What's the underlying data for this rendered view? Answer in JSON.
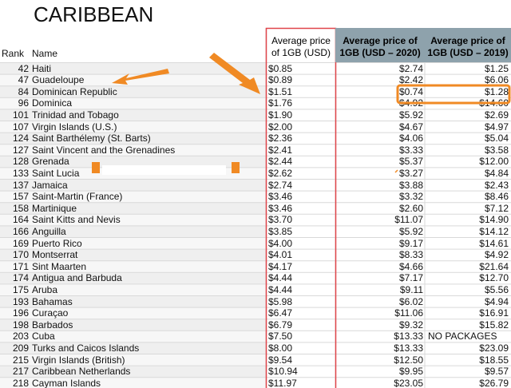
{
  "title": "CARIBBEAN",
  "table": {
    "header": {
      "rank": "Rank",
      "name": "Name",
      "price": [
        "Average price",
        "of 1GB (USD)"
      ],
      "price_2020": [
        "Average price of",
        "1GB (USD – 2020)"
      ],
      "price_2019": [
        "Average price of",
        "1GB (USD – 2019)"
      ]
    },
    "rows": [
      [
        "42",
        "Haiti",
        "$0.85",
        "$2.74",
        "$1.25"
      ],
      [
        "47",
        "Guadeloupe",
        "$0.89",
        "$2.42",
        "$6.06"
      ],
      [
        "84",
        "Dominican Republic",
        "$1.51",
        "$0.74",
        "$1.28"
      ],
      [
        "96",
        "Dominica",
        "$1.76",
        "$4.92",
        "$14.60"
      ],
      [
        "101",
        "Trinidad and Tobago",
        "$1.90",
        "$5.92",
        "$2.69"
      ],
      [
        "107",
        "Virgin Islands (U.S.)",
        "$2.00",
        "$4.67",
        "$4.97"
      ],
      [
        "124",
        "Saint Barthélemy (St. Barts)",
        "$2.36",
        "$4.06",
        "$5.04"
      ],
      [
        "127",
        "Saint Vincent and the Grenadines",
        "$2.41",
        "$3.33",
        "$3.58"
      ],
      [
        "128",
        "Grenada",
        "$2.44",
        "$5.37",
        "$12.00"
      ],
      [
        "133",
        "Saint Lucia",
        "$2.62",
        "$3.27",
        "$4.84"
      ],
      [
        "137",
        "Jamaica",
        "$2.74",
        "$3.88",
        "$2.43"
      ],
      [
        "157",
        "Saint-Martin (France)",
        "$3.46",
        "$3.32",
        "$8.46"
      ],
      [
        "158",
        "Martinique",
        "$3.46",
        "$2.60",
        "$7.12"
      ],
      [
        "164",
        "Saint Kitts and Nevis",
        "$3.70",
        "$11.07",
        "$14.90"
      ],
      [
        "166",
        "Anguilla",
        "$3.85",
        "$5.92",
        "$14.12"
      ],
      [
        "169",
        "Puerto Rico",
        "$4.00",
        "$9.17",
        "$14.61"
      ],
      [
        "170",
        "Montserrat",
        "$4.01",
        "$8.33",
        "$4.92"
      ],
      [
        "171",
        "Sint Maarten",
        "$4.17",
        "$4.66",
        "$21.64"
      ],
      [
        "174",
        "Antigua and Barbuda",
        "$4.44",
        "$7.17",
        "$12.70"
      ],
      [
        "175",
        "Aruba",
        "$4.44",
        "$9.11",
        "$5.56"
      ],
      [
        "193",
        "Bahamas",
        "$5.98",
        "$6.02",
        "$4.94"
      ],
      [
        "196",
        "Curaçao",
        "$6.47",
        "$11.06",
        "$16.91"
      ],
      [
        "198",
        "Barbados",
        "$6.79",
        "$9.32",
        "$15.82"
      ],
      [
        "203",
        "Cuba",
        "$7.50",
        "$13.33",
        "NO PACKAGES"
      ],
      [
        "209",
        "Turks and Caicos Islands",
        "$8.00",
        "$13.33",
        "$23.09"
      ],
      [
        "215",
        "Virgin Islands (British)",
        "$9.54",
        "$12.50",
        "$18.55"
      ],
      [
        "217",
        "Caribbean Netherlands",
        "$10.94",
        "$9.95",
        "$9.57"
      ],
      [
        "218",
        "Cayman Islands",
        "$11.97",
        "$23.05",
        "$26.79"
      ]
    ]
  }
}
